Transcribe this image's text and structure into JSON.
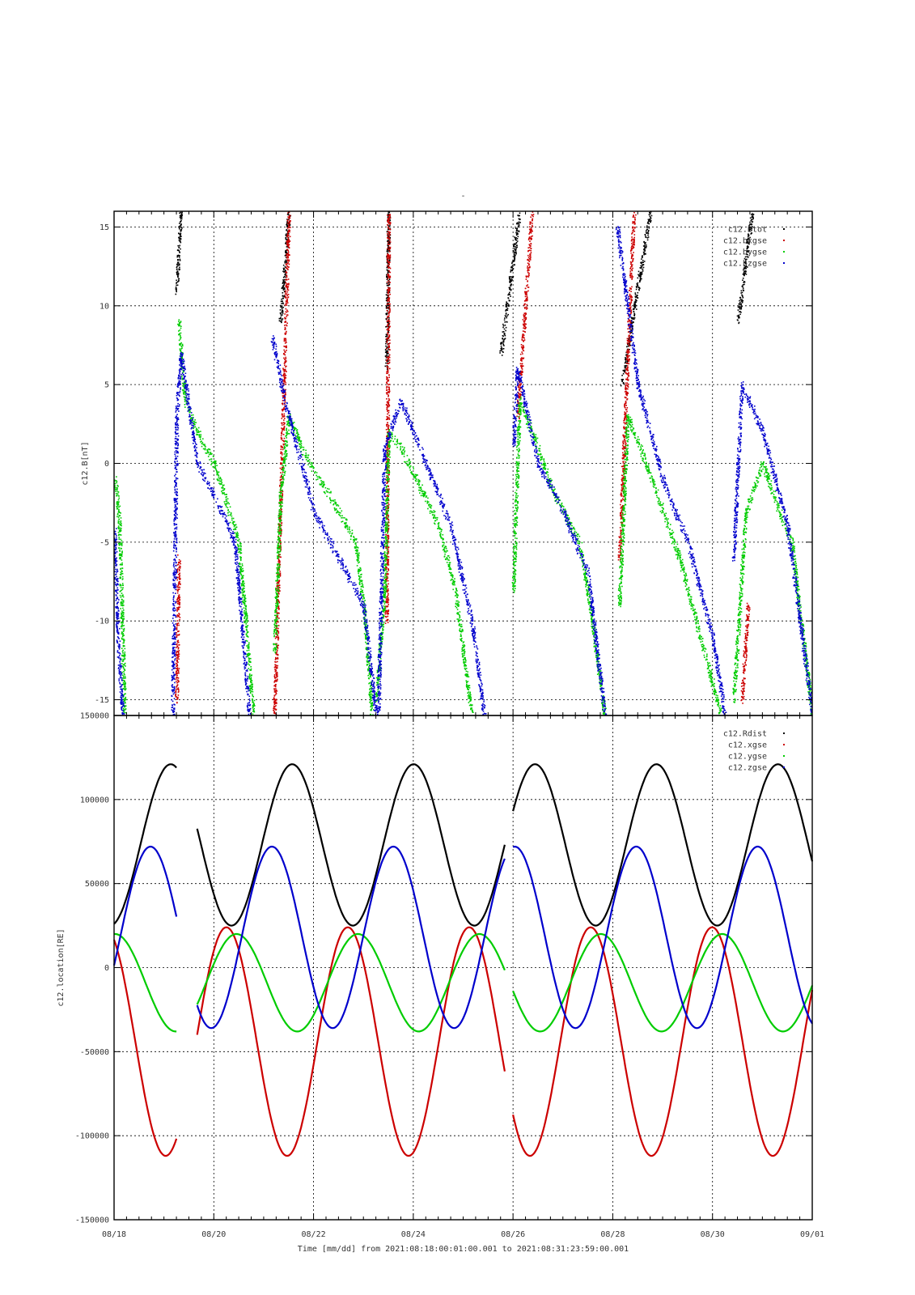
{
  "chart_data": [
    {
      "type": "scatter",
      "title": "-",
      "ylabel": "c12.B[nT]",
      "xlim": [
        "2021-08-18",
        "2021-09-01"
      ],
      "ylim": [
        -16,
        16
      ],
      "yticks": [
        -15,
        -10,
        -5,
        0,
        5,
        10,
        15
      ],
      "grid": true,
      "legend_position": "top-right",
      "series": [
        {
          "name": "c12.Btot",
          "color": "#000000",
          "segments": [
            [
              [
                "2021-08-19T06:00",
                11
              ],
              [
                "2021-08-19T08:00",
                16
              ]
            ],
            [
              [
                "2021-08-21T08:00",
                9
              ],
              [
                "2021-08-21T12:00",
                16
              ]
            ],
            [
              [
                "2021-08-23T11:00",
                6
              ],
              [
                "2021-08-23T12:00",
                16
              ]
            ],
            [
              [
                "2021-08-25T18:00",
                7
              ],
              [
                "2021-08-26T03:00",
                16
              ]
            ],
            [
              [
                "2021-08-28T04:00",
                5
              ],
              [
                "2021-08-28T18:00",
                16
              ]
            ],
            [
              [
                "2021-08-30T12:00",
                9
              ],
              [
                "2021-08-30T19:00",
                16
              ]
            ]
          ]
        },
        {
          "name": "c12.bxgse",
          "color": "#cc0000",
          "segments": [
            [
              [
                "2021-08-19T06:00",
                -15
              ],
              [
                "2021-08-19T07:00",
                -6
              ]
            ],
            [
              [
                "2021-08-21T05:00",
                -16
              ],
              [
                "2021-08-21T12:00",
                16
              ]
            ],
            [
              [
                "2021-08-23T11:00",
                -10
              ],
              [
                "2021-08-23T12:00",
                16
              ]
            ],
            [
              [
                "2021-08-26T02:00",
                3
              ],
              [
                "2021-08-26T09:00",
                16
              ]
            ],
            [
              [
                "2021-08-28T03:00",
                -6
              ],
              [
                "2021-08-28T10:00",
                16
              ]
            ],
            [
              [
                "2021-08-30T14:00",
                -15
              ],
              [
                "2021-08-30T17:00",
                -9
              ]
            ]
          ]
        },
        {
          "name": "c12.bygse",
          "color": "#00cc00",
          "segments": [
            [
              [
                "2021-08-18T00:00",
                -1
              ],
              [
                "2021-08-18T01:00",
                -1.5
              ],
              [
                "2021-08-18T02:30",
                -4
              ],
              [
                "2021-08-18T05:00",
                -16
              ]
            ],
            [
              [
                "2021-08-19T07:00",
                9
              ],
              [
                "2021-08-19T10:00",
                4
              ],
              [
                "2021-08-19T16:00",
                2
              ],
              [
                "2021-08-20T00:00",
                0
              ],
              [
                "2021-08-20T12:00",
                -5
              ],
              [
                "2021-08-20T19:00",
                -16
              ]
            ],
            [
              [
                "2021-08-21T05:00",
                -12
              ],
              [
                "2021-08-21T08:00",
                -2
              ],
              [
                "2021-08-21T12:00",
                3
              ],
              [
                "2021-08-21T20:00",
                0.5
              ],
              [
                "2021-08-22T12:00",
                -3
              ],
              [
                "2021-08-22T20:00",
                -5
              ],
              [
                "2021-08-23T00:00",
                -9
              ],
              [
                "2021-08-23T04:00",
                -16
              ]
            ],
            [
              [
                "2021-08-23T06:00",
                -15
              ],
              [
                "2021-08-23T10:00",
                -8
              ],
              [
                "2021-08-23T12:00",
                2
              ],
              [
                "2021-08-23T18:00",
                1
              ],
              [
                "2021-08-24T12:00",
                -4
              ],
              [
                "2021-08-24T20:00",
                -8
              ],
              [
                "2021-08-25T04:00",
                -16
              ]
            ],
            [
              [
                "2021-08-26T00:00",
                -8
              ],
              [
                "2021-08-26T03:00",
                4
              ],
              [
                "2021-08-26T12:00",
                1
              ],
              [
                "2021-08-26T20:00",
                -2
              ],
              [
                "2021-08-27T08:00",
                -5
              ],
              [
                "2021-08-27T14:00",
                -10
              ],
              [
                "2021-08-27T20:00",
                -16
              ]
            ],
            [
              [
                "2021-08-28T03:00",
                -9
              ],
              [
                "2021-08-28T07:00",
                3
              ],
              [
                "2021-08-28T16:00",
                0
              ],
              [
                "2021-08-29T00:00",
                -3
              ],
              [
                "2021-08-29T08:00",
                -6
              ],
              [
                "2021-08-29T20:00",
                -12
              ],
              [
                "2021-08-30T04:00",
                -16
              ]
            ],
            [
              [
                "2021-08-30T10:00",
                -15
              ],
              [
                "2021-08-30T16:00",
                -3
              ],
              [
                "2021-08-31T00:00",
                0
              ],
              [
                "2021-08-31T08:00",
                -3
              ],
              [
                "2021-08-31T14:00",
                -5
              ],
              [
                "2021-09-01T00:00",
                -16
              ]
            ]
          ]
        },
        {
          "name": "c12.bzgse",
          "color": "#0000cc",
          "segments": [
            [
              [
                "2021-08-18T00:00",
                -4
              ],
              [
                "2021-08-18T01:00",
                -8
              ],
              [
                "2021-08-18T02:00",
                -12
              ],
              [
                "2021-08-18T04:00",
                -16
              ]
            ],
            [
              [
                "2021-08-19T04:00",
                -16
              ],
              [
                "2021-08-19T06:00",
                3
              ],
              [
                "2021-08-19T08:00",
                7
              ],
              [
                "2021-08-19T16:00",
                0
              ],
              [
                "2021-08-20T00:00",
                -2
              ],
              [
                "2021-08-20T10:00",
                -5
              ],
              [
                "2021-08-20T17:00",
                -16
              ]
            ],
            [
              [
                "2021-08-21T04:00",
                8
              ],
              [
                "2021-08-21T10:00",
                4
              ],
              [
                "2021-08-22T00:00",
                -3
              ],
              [
                "2021-08-22T12:00",
                -6
              ],
              [
                "2021-08-23T00:00",
                -9
              ],
              [
                "2021-08-23T06:00",
                -16
              ]
            ],
            [
              [
                "2021-08-23T07:00",
                -16
              ],
              [
                "2021-08-23T10:00",
                1
              ],
              [
                "2021-08-23T18:00",
                4
              ],
              [
                "2021-08-24T06:00",
                0
              ],
              [
                "2021-08-24T18:00",
                -4
              ],
              [
                "2021-08-25T04:00",
                -10
              ],
              [
                "2021-08-25T10:00",
                -16
              ]
            ],
            [
              [
                "2021-08-26T00:00",
                1
              ],
              [
                "2021-08-26T02:00",
                6
              ],
              [
                "2021-08-26T12:00",
                0
              ],
              [
                "2021-08-27T00:00",
                -3
              ],
              [
                "2021-08-27T12:00",
                -7
              ],
              [
                "2021-08-27T20:00",
                -16
              ]
            ],
            [
              [
                "2021-08-28T02:00",
                15
              ],
              [
                "2021-08-28T12:00",
                5
              ],
              [
                "2021-08-29T00:00",
                -1
              ],
              [
                "2021-08-29T12:00",
                -5
              ],
              [
                "2021-08-30T00:00",
                -11
              ],
              [
                "2021-08-30T06:00",
                -16
              ]
            ],
            [
              [
                "2021-08-30T10:00",
                -6
              ],
              [
                "2021-08-30T14:00",
                5
              ],
              [
                "2021-08-31T00:00",
                2
              ],
              [
                "2021-08-31T12:00",
                -4
              ],
              [
                "2021-09-01T00:00",
                -16
              ]
            ]
          ]
        }
      ]
    },
    {
      "type": "line",
      "title": "",
      "ylabel": "c12.location[RE]",
      "xlabel": "Time [mm/dd]  from 2021:08:18:00:01:00.001  to  2021:08:31:23:59:00.001",
      "xlim": [
        "2021-08-18",
        "2021-09-01"
      ],
      "xticks": [
        {
          "date": "2021-08-18",
          "label": "08/18"
        },
        {
          "date": "2021-08-20",
          "label": "08/20"
        },
        {
          "date": "2021-08-22",
          "label": "08/22"
        },
        {
          "date": "2021-08-24",
          "label": "08/24"
        },
        {
          "date": "2021-08-26",
          "label": "08/26"
        },
        {
          "date": "2021-08-28",
          "label": "08/28"
        },
        {
          "date": "2021-08-30",
          "label": "08/30"
        },
        {
          "date": "2021-09-01",
          "label": "09/01"
        }
      ],
      "ylim": [
        -150000,
        150000
      ],
      "yticks": [
        -150000,
        -100000,
        -50000,
        0,
        50000,
        100000,
        150000
      ],
      "grid": true,
      "legend_position": "top-right",
      "gaps": [
        [
          "2021-08-19T06:00",
          "2021-08-19T16:00"
        ],
        [
          "2021-08-25T20:00",
          "2021-08-25T23:59"
        ]
      ],
      "series": [
        {
          "name": "c12.Rdist",
          "color": "#000000",
          "mean": 73000,
          "amplitude": 48000,
          "phase_deg": 168,
          "clip_min": 23000
        },
        {
          "name": "c12.xgse",
          "color": "#cc0000",
          "mean": -44000,
          "amplitude": 68000,
          "phase_deg": 333
        },
        {
          "name": "c12.ygse",
          "color": "#00cc00",
          "mean": -9000,
          "amplitude": 29000,
          "phase_deg": 3
        },
        {
          "name": "c12.zgse",
          "color": "#0000cc",
          "mean": 18000,
          "amplitude": 54000,
          "phase_deg": 108
        }
      ]
    }
  ]
}
